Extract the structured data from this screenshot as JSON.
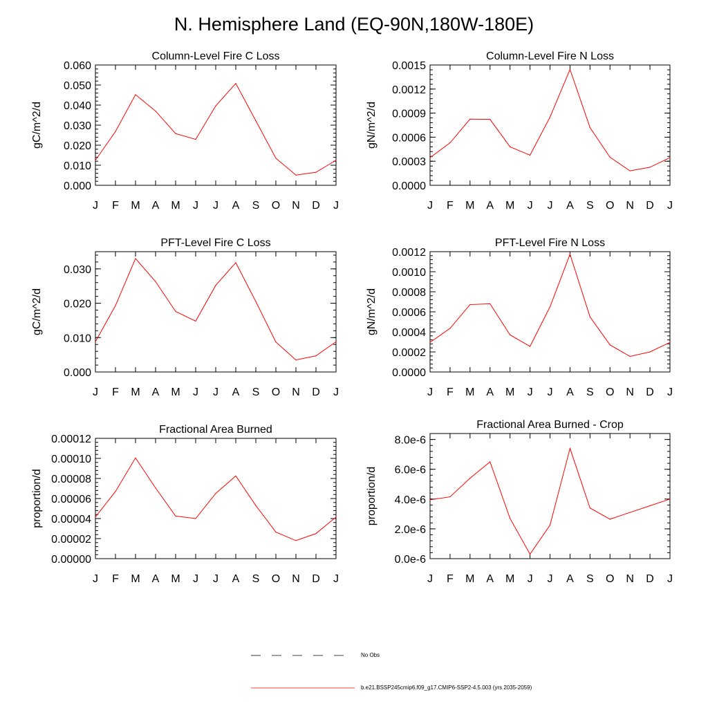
{
  "title": "N. Hemisphere Land (EQ-90N,180W-180E)",
  "colors": {
    "series": "#ff0000",
    "axis": "#000000"
  },
  "legend": {
    "items": [
      {
        "label": "No Obs",
        "style": "dashed",
        "color": "#000000"
      },
      {
        "label": "b.e21.BSSP245cmip6.f09_g17.CMIP6-SSP2-4.5.003 (yrs 2035-2059)",
        "style": "solid",
        "color": "#ff0000"
      }
    ]
  },
  "chart_data": [
    {
      "type": "line",
      "title": "Column-Level Fire C Loss",
      "ylabel": "gC/m^2/d",
      "categories": [
        "J",
        "F",
        "M",
        "A",
        "M",
        "J",
        "J",
        "A",
        "S",
        "O",
        "N",
        "D",
        "J"
      ],
      "ylim": [
        0,
        0.06
      ],
      "yticks": [
        "0.000",
        "0.010",
        "0.020",
        "0.030",
        "0.040",
        "0.050",
        "0.060"
      ],
      "series": [
        {
          "values": [
            0.0125,
            0.0268,
            0.0452,
            0.037,
            0.0258,
            0.0229,
            0.0396,
            0.0508,
            0.0322,
            0.0135,
            0.0051,
            0.0065,
            0.0125
          ]
        }
      ]
    },
    {
      "type": "line",
      "title": "Column-Level Fire N Loss",
      "ylabel": "gN/m^2/d",
      "categories": [
        "J",
        "F",
        "M",
        "A",
        "M",
        "J",
        "J",
        "A",
        "S",
        "O",
        "N",
        "D",
        "J"
      ],
      "ylim": [
        0,
        0.0015
      ],
      "yticks": [
        "0.0000",
        "0.0003",
        "0.0006",
        "0.0009",
        "0.0012",
        "0.0015"
      ],
      "series": [
        {
          "values": [
            0.000345,
            0.00053,
            0.000825,
            0.000822,
            0.00048,
            0.000375,
            0.00085,
            0.001445,
            0.00072,
            0.00035,
            0.00018,
            0.000225,
            0.000345
          ]
        }
      ]
    },
    {
      "type": "line",
      "title": "PFT-Level Fire C Loss",
      "ylabel": "gC/m^2/d",
      "categories": [
        "J",
        "F",
        "M",
        "A",
        "M",
        "J",
        "J",
        "A",
        "S",
        "O",
        "N",
        "D",
        "J"
      ],
      "ylim": [
        0,
        0.035
      ],
      "yticks": [
        "0.000",
        "0.010",
        "0.020",
        "0.030"
      ],
      "series": [
        {
          "values": [
            0.0088,
            0.0193,
            0.033,
            0.0263,
            0.0176,
            0.0148,
            0.0252,
            0.0318,
            0.0205,
            0.0087,
            0.0035,
            0.0047,
            0.0088
          ]
        }
      ]
    },
    {
      "type": "line",
      "title": "PFT-Level Fire N Loss",
      "ylabel": "gN/m^2/d",
      "categories": [
        "J",
        "F",
        "M",
        "A",
        "M",
        "J",
        "J",
        "A",
        "S",
        "O",
        "N",
        "D",
        "J"
      ],
      "ylim": [
        0,
        0.0012
      ],
      "yticks": [
        "0.0000",
        "0.0002",
        "0.0004",
        "0.0006",
        "0.0008",
        "0.0010",
        "0.0012"
      ],
      "series": [
        {
          "values": [
            0.000295,
            0.000435,
            0.000672,
            0.00068,
            0.00037,
            0.000255,
            0.00065,
            0.001175,
            0.00055,
            0.00027,
            0.000155,
            0.0002,
            0.000295
          ]
        }
      ]
    },
    {
      "type": "line",
      "title": "Fractional Area Burned",
      "ylabel": "proportion/d",
      "categories": [
        "J",
        "F",
        "M",
        "A",
        "M",
        "J",
        "J",
        "A",
        "S",
        "O",
        "N",
        "D",
        "J"
      ],
      "ylim": [
        0,
        0.00012
      ],
      "yticks": [
        "0.00000",
        "0.00002",
        "0.00004",
        "0.00006",
        "0.00008",
        "0.00010",
        "0.00012"
      ],
      "series": [
        {
          "values": [
            4.15e-05,
            6.7e-05,
            0.0001005,
            7.05e-05,
            4.25e-05,
            4e-05,
            6.5e-05,
            8.25e-05,
            5.3e-05,
            2.65e-05,
            1.8e-05,
            2.5e-05,
            4.15e-05
          ]
        }
      ]
    },
    {
      "type": "line",
      "title": "Fractional Area Burned - Crop",
      "ylabel": "proportion/d",
      "categories": [
        "J",
        "F",
        "M",
        "A",
        "M",
        "J",
        "J",
        "A",
        "S",
        "O",
        "N",
        "D",
        "J"
      ],
      "ylim": [
        0,
        8.4e-06
      ],
      "yticks": [
        "0.0e-6",
        "2.0e-6",
        "4.0e-6",
        "6.0e-6",
        "8.0e-6"
      ],
      "ytick_values": [
        0,
        2e-06,
        4e-06,
        6e-06,
        8e-06
      ],
      "series": [
        {
          "values": [
            3.95e-06,
            4.15e-06,
            5.4e-06,
            6.5e-06,
            2.7e-06,
            3e-07,
            2.25e-06,
            7.4e-06,
            3.4e-06,
            2.65e-06,
            3.1e-06,
            3.55e-06,
            4e-06
          ]
        }
      ]
    }
  ]
}
